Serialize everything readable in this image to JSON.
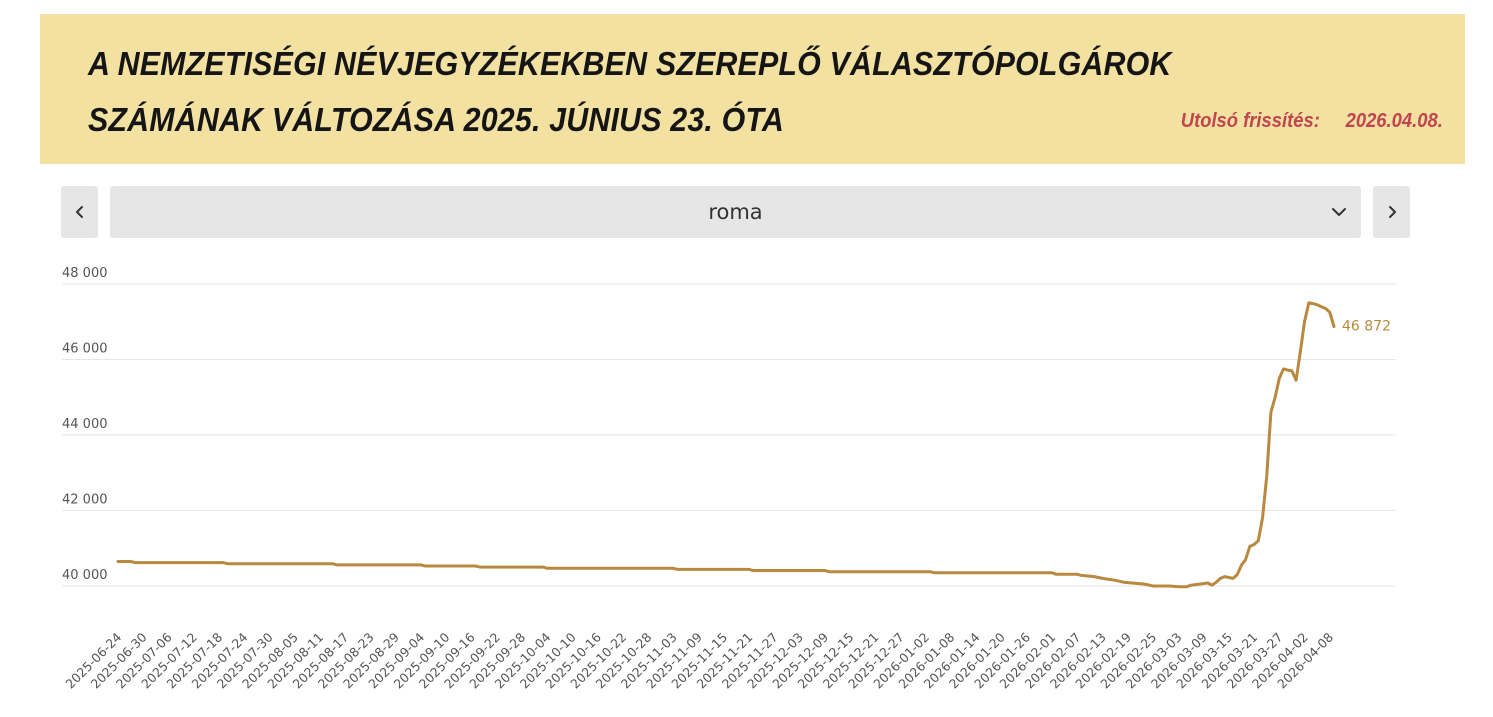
{
  "header": {
    "title_line1": "A NEMZETISÉGI NÉVJEGYZÉKEKBEN SZEREPLŐ VÁLASZTÓPOLGÁROK",
    "title_line2": "SZÁMÁNAK VÁLTOZÁSA 2025. JÚNIUS 23. ÓTA",
    "updated_label": "Utolsó frissítés:",
    "updated_date": "2026.04.08."
  },
  "selector": {
    "value": "roma",
    "prev_icon": "chevron-left-icon",
    "next_icon": "chevron-right-icon",
    "dropdown_icon": "chevron-down-icon"
  },
  "colors": {
    "header_bg": "#f2e1a1",
    "updated_text": "#c0454f",
    "line": "#b8893e",
    "grid": "#e6e6e6"
  },
  "chart_data": {
    "type": "line",
    "title": "",
    "xlabel": "",
    "ylabel": "",
    "ylim": [
      38800,
      48000
    ],
    "y_ticks": [
      40000,
      42000,
      44000,
      46000,
      48000
    ],
    "y_tick_labels": [
      "40 000",
      "42 000",
      "44 000",
      "46 000",
      "48 000"
    ],
    "grid": true,
    "x_tick_labels": [
      "2025-06-24",
      "2025-06-30",
      "2025-07-06",
      "2025-07-12",
      "2025-07-18",
      "2025-07-24",
      "2025-07-30",
      "2025-08-05",
      "2025-08-11",
      "2025-08-17",
      "2025-08-23",
      "2025-08-29",
      "2025-09-04",
      "2025-09-10",
      "2025-09-16",
      "2025-09-22",
      "2025-09-28",
      "2025-10-04",
      "2025-10-10",
      "2025-10-16",
      "2025-10-22",
      "2025-10-28",
      "2025-11-03",
      "2025-11-09",
      "2025-11-15",
      "2025-11-21",
      "2025-11-27",
      "2025-12-03",
      "2025-12-09",
      "2025-12-15",
      "2025-12-21",
      "2025-12-27",
      "2026-01-02",
      "2026-01-08",
      "2026-01-14",
      "2026-01-20",
      "2026-01-26",
      "2026-02-01",
      "2026-02-07",
      "2026-02-13",
      "2026-02-19",
      "2026-02-25",
      "2026-03-03",
      "2026-03-09",
      "2026-03-15",
      "2026-03-21",
      "2026-03-27",
      "2026-04-02",
      "2026-04-08"
    ],
    "series": [
      {
        "x": [
          "2025-06-23",
          "2025-06-26",
          "2025-06-27",
          "2025-07-18",
          "2025-07-19",
          "2025-08-13",
          "2025-08-14",
          "2025-09-03",
          "2025-09-04",
          "2025-09-16",
          "2025-09-17",
          "2025-10-02",
          "2025-10-03",
          "2025-11-02",
          "2025-11-03",
          "2025-11-20",
          "2025-11-21",
          "2025-12-08",
          "2025-12-09",
          "2026-01-02",
          "2026-01-03",
          "2026-01-31",
          "2026-02-01",
          "2026-02-06",
          "2026-02-07",
          "2026-02-10",
          "2026-02-12",
          "2026-02-15",
          "2026-02-17",
          "2026-02-19",
          "2026-02-22",
          "2026-02-24",
          "2026-02-26",
          "2026-02-28",
          "2026-03-02",
          "2026-03-04",
          "2026-03-05",
          "2026-03-07",
          "2026-03-09",
          "2026-03-10",
          "2026-03-11",
          "2026-03-12",
          "2026-03-13",
          "2026-03-15",
          "2026-03-16",
          "2026-03-17",
          "2026-03-18",
          "2026-03-19",
          "2026-03-20",
          "2026-03-21",
          "2026-03-22",
          "2026-03-23",
          "2026-03-24",
          "2026-03-25",
          "2026-03-26",
          "2026-03-27",
          "2026-03-28",
          "2026-03-29",
          "2026-03-30",
          "2026-03-31",
          "2026-04-01",
          "2026-04-02",
          "2026-04-03",
          "2026-04-04",
          "2026-04-05",
          "2026-04-06",
          "2026-04-07",
          "2026-04-08"
        ],
        "values": [
          40650,
          40650,
          40620,
          40620,
          40590,
          40590,
          40560,
          40560,
          40530,
          40530,
          40500,
          40500,
          40470,
          40470,
          40440,
          40440,
          40410,
          40410,
          40380,
          40380,
          40350,
          40350,
          40310,
          40310,
          40280,
          40250,
          40200,
          40150,
          40100,
          40080,
          40050,
          40000,
          40000,
          40000,
          39980,
          39980,
          40020,
          40050,
          40080,
          40020,
          40100,
          40200,
          40250,
          40200,
          40300,
          40550,
          40700,
          41050,
          41100,
          41200,
          41800,
          42900,
          44600,
          45000,
          45500,
          45750,
          45720,
          45700,
          45450,
          46200,
          47000,
          47500,
          47480,
          47450,
          47400,
          47350,
          47250,
          46872
        ]
      }
    ],
    "end_label": "46 872"
  }
}
